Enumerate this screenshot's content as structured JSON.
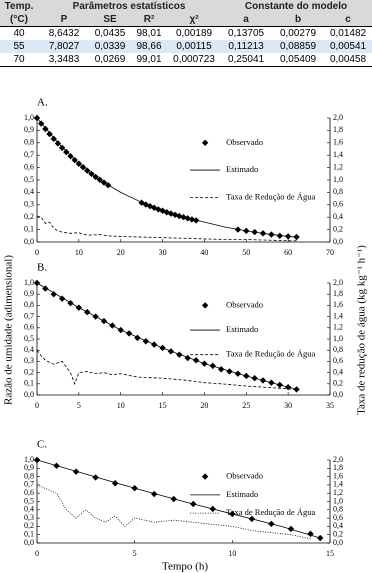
{
  "table": {
    "group_headers": [
      "Temp.",
      "Parâmetros estatísticos",
      "Constante do modelo"
    ],
    "headers": [
      "(°C)",
      "P",
      "SE",
      "R²",
      "χ²",
      "a",
      "b",
      "c"
    ],
    "rows": [
      [
        "40",
        "8,6432",
        "0,0435",
        "98,01",
        "0,00189",
        "0,13705",
        "0,00279",
        "0,01482"
      ],
      [
        "55",
        "7,8027",
        "0,0339",
        "98,66",
        "0,00115",
        "0,11213",
        "0,08859",
        "0,00541"
      ],
      [
        "70",
        "3,3483",
        "0,0269",
        "99,01",
        "0,000723",
        "0,25041",
        "0,05409",
        "0,00458"
      ]
    ]
  },
  "figure": {
    "y_label": "Razão de umidade (adimensional)",
    "y2_label": "Taxa de redução de água (kg kg⁻¹ h⁻¹)",
    "x_label": "Tempo (h)"
  },
  "chart_data": [
    {
      "type": "line",
      "title": "A.",
      "legend": "right",
      "xlim": [
        0,
        70
      ],
      "xticks": [
        0,
        10,
        20,
        30,
        40,
        50,
        60,
        70
      ],
      "ylim": [
        0,
        1
      ],
      "yticks": [
        {
          "value": 0,
          "label": "0,0"
        },
        {
          "value": 0.1,
          "label": "0,1"
        },
        {
          "value": 0.2,
          "label": "0,2"
        },
        {
          "value": 0.3,
          "label": "0,3"
        },
        {
          "value": 0.4,
          "label": "0,4"
        },
        {
          "value": 0.5,
          "label": "0,5"
        },
        {
          "value": 0.6,
          "label": "0,6"
        },
        {
          "value": 0.7,
          "label": "0,7"
        },
        {
          "value": 0.8,
          "label": "0,8"
        },
        {
          "value": 0.9,
          "label": "0,9"
        },
        {
          "value": 1,
          "label": "1,0"
        }
      ],
      "y2lim": [
        0,
        2
      ],
      "y2ticks": [
        {
          "value": 0,
          "label": "0,0"
        },
        {
          "value": 0.2,
          "label": "0,2"
        },
        {
          "value": 0.4,
          "label": "0,4"
        },
        {
          "value": 0.6,
          "label": "0,6"
        },
        {
          "value": 0.8,
          "label": "0,8"
        },
        {
          "value": 1,
          "label": "1,0"
        },
        {
          "value": 1.2,
          "label": "1,2"
        },
        {
          "value": 1.4,
          "label": "1,4"
        },
        {
          "value": 1.6,
          "label": "1,6"
        },
        {
          "value": 1.8,
          "label": "1,8"
        },
        {
          "value": 2,
          "label": "2,0"
        }
      ],
      "series": [
        {
          "name": "Observado",
          "color": "#000000",
          "marker": "diamond",
          "x": [
            0,
            1,
            2,
            3,
            4,
            5,
            6,
            7,
            8,
            9,
            10,
            11,
            12,
            13,
            14,
            15,
            16,
            17,
            25,
            26,
            27,
            28,
            29,
            30,
            31,
            32,
            33,
            34,
            35,
            36,
            37,
            38,
            48,
            50,
            52,
            54,
            56,
            58,
            60,
            62
          ],
          "values": [
            1.0,
            0.955,
            0.912,
            0.871,
            0.832,
            0.795,
            0.759,
            0.725,
            0.692,
            0.661,
            0.631,
            0.603,
            0.576,
            0.55,
            0.525,
            0.502,
            0.479,
            0.458,
            0.317,
            0.302,
            0.289,
            0.276,
            0.263,
            0.252,
            0.24,
            0.229,
            0.219,
            0.209,
            0.2,
            0.191,
            0.182,
            0.174,
            0.1,
            0.09,
            0.08,
            0.07,
            0.06,
            0.05,
            0.045,
            0.04
          ]
        },
        {
          "name": "Estimado",
          "color": "#000000",
          "dash": "solid",
          "x": [
            0,
            5,
            10,
            15,
            20,
            25,
            30,
            35,
            40,
            45,
            50,
            55,
            60,
            62
          ],
          "values": [
            1.0,
            0.8,
            0.63,
            0.5,
            0.4,
            0.32,
            0.25,
            0.2,
            0.16,
            0.12,
            0.09,
            0.065,
            0.045,
            0.04
          ]
        },
        {
          "name": "Taxa de Redução de Água",
          "color": "#000000",
          "dash": "dashed",
          "axis": "y2",
          "x": [
            0,
            1,
            2,
            3,
            4,
            5,
            6,
            8,
            10,
            12,
            15,
            17,
            20,
            25,
            30,
            35,
            40,
            45,
            50,
            55,
            60,
            62
          ],
          "values": [
            0.42,
            0.4,
            0.3,
            0.32,
            0.22,
            0.18,
            0.16,
            0.14,
            0.15,
            0.11,
            0.12,
            0.1,
            0.09,
            0.08,
            0.07,
            0.06,
            0.05,
            0.04,
            0.04,
            0.03,
            0.02,
            0.02
          ]
        }
      ]
    },
    {
      "type": "line",
      "title": "B.",
      "legend": "right",
      "xlim": [
        0,
        35
      ],
      "xticks": [
        0,
        5,
        10,
        15,
        20,
        25,
        30,
        35
      ],
      "ylim": [
        0,
        1
      ],
      "yticks": [
        {
          "value": 0,
          "label": "0,0"
        },
        {
          "value": 0.1,
          "label": "0,1"
        },
        {
          "value": 0.2,
          "label": "0,2"
        },
        {
          "value": 0.3,
          "label": "0,3"
        },
        {
          "value": 0.4,
          "label": "0,4"
        },
        {
          "value": 0.5,
          "label": "0,5"
        },
        {
          "value": 0.6,
          "label": "0,6"
        },
        {
          "value": 0.7,
          "label": "0,7"
        },
        {
          "value": 0.8,
          "label": "0,8"
        },
        {
          "value": 0.9,
          "label": "0,9"
        },
        {
          "value": 1,
          "label": "1,0"
        }
      ],
      "y2lim": [
        0,
        2
      ],
      "y2ticks": [
        {
          "value": 0,
          "label": "0,0"
        },
        {
          "value": 0.2,
          "label": "0,2"
        },
        {
          "value": 0.4,
          "label": "0,4"
        },
        {
          "value": 0.6,
          "label": "0,6"
        },
        {
          "value": 0.8,
          "label": "0,8"
        },
        {
          "value": 1,
          "label": "1,0"
        },
        {
          "value": 1.2,
          "label": "1,2"
        },
        {
          "value": 1.4,
          "label": "1,4"
        },
        {
          "value": 1.6,
          "label": "1,6"
        },
        {
          "value": 1.8,
          "label": "1,8"
        },
        {
          "value": 2,
          "label": "2,0"
        }
      ],
      "series": [
        {
          "name": "Observado",
          "color": "#000000",
          "marker": "diamond",
          "x": [
            0,
            1,
            2,
            3,
            4,
            5,
            6,
            7,
            8,
            9,
            10,
            11,
            12,
            13,
            14,
            15,
            16,
            17,
            18,
            19,
            20,
            21,
            22,
            23,
            24,
            25,
            26,
            27,
            28,
            29,
            30,
            31
          ],
          "values": [
            1.0,
            0.95,
            0.9,
            0.86,
            0.82,
            0.78,
            0.74,
            0.7,
            0.66,
            0.62,
            0.58,
            0.55,
            0.51,
            0.48,
            0.45,
            0.42,
            0.39,
            0.36,
            0.33,
            0.31,
            0.28,
            0.26,
            0.23,
            0.21,
            0.19,
            0.17,
            0.15,
            0.13,
            0.11,
            0.09,
            0.07,
            0.05
          ]
        },
        {
          "name": "Estimado",
          "color": "#000000",
          "dash": "solid",
          "x": [
            0,
            5,
            10,
            15,
            20,
            25,
            30,
            31
          ],
          "values": [
            1.0,
            0.78,
            0.58,
            0.42,
            0.28,
            0.17,
            0.07,
            0.05
          ]
        },
        {
          "name": "Taxa de Redução de Água",
          "color": "#000000",
          "dash": "dashed",
          "axis": "y2",
          "x": [
            0,
            0.5,
            1,
            2,
            3,
            4,
            4.5,
            5,
            6,
            7,
            8,
            9,
            10,
            12,
            15,
            18,
            20,
            22,
            25,
            28,
            31
          ],
          "values": [
            0.8,
            0.7,
            0.62,
            0.55,
            0.6,
            0.4,
            0.2,
            0.4,
            0.42,
            0.38,
            0.4,
            0.36,
            0.38,
            0.32,
            0.3,
            0.26,
            0.22,
            0.2,
            0.16,
            0.13,
            0.1
          ]
        }
      ]
    },
    {
      "type": "line",
      "title": "C.",
      "legend": "right",
      "xlim": [
        0,
        15
      ],
      "xticks": [
        0,
        5,
        10,
        15
      ],
      "ylim": [
        0,
        1
      ],
      "yticks": [
        {
          "value": 0,
          "label": "0,0"
        },
        {
          "value": 0.1,
          "label": "0,1"
        },
        {
          "value": 0.2,
          "label": "0,2"
        },
        {
          "value": 0.3,
          "label": "0,3"
        },
        {
          "value": 0.4,
          "label": "0,4"
        },
        {
          "value": 0.5,
          "label": "0,5"
        },
        {
          "value": 0.6,
          "label": "0,6"
        },
        {
          "value": 0.7,
          "label": "0,7"
        },
        {
          "value": 0.8,
          "label": "0,8"
        },
        {
          "value": 0.9,
          "label": "0,9"
        },
        {
          "value": 1,
          "label": "1,0"
        }
      ],
      "y2lim": [
        0,
        2
      ],
      "y2ticks": [
        {
          "value": 0,
          "label": "0,0"
        },
        {
          "value": 0.2,
          "label": "0,2"
        },
        {
          "value": 0.4,
          "label": "0,4"
        },
        {
          "value": 0.6,
          "label": "0,6"
        },
        {
          "value": 0.8,
          "label": "0,8"
        },
        {
          "value": 1,
          "label": "1,0"
        },
        {
          "value": 1.2,
          "label": "1,2"
        },
        {
          "value": 1.4,
          "label": "1,4"
        },
        {
          "value": 1.6,
          "label": "1,6"
        },
        {
          "value": 1.8,
          "label": "1,8"
        },
        {
          "value": 2,
          "label": "2,0"
        }
      ],
      "series": [
        {
          "name": "Observado",
          "color": "#000000",
          "marker": "diamond",
          "x": [
            0,
            1,
            2,
            3,
            4,
            5,
            6,
            7,
            8,
            9,
            10,
            11,
            12,
            13,
            14,
            14.5
          ],
          "values": [
            1.0,
            0.93,
            0.86,
            0.79,
            0.72,
            0.66,
            0.59,
            0.53,
            0.47,
            0.41,
            0.35,
            0.29,
            0.23,
            0.17,
            0.11,
            0.06
          ]
        },
        {
          "name": "Estimado",
          "color": "#000000",
          "dash": "solid",
          "x": [
            0,
            2.5,
            5,
            7.5,
            10,
            12.5,
            14.5
          ],
          "values": [
            1.0,
            0.83,
            0.66,
            0.5,
            0.35,
            0.2,
            0.06
          ]
        },
        {
          "name": "Taxa de Redução de Água",
          "color": "#000000",
          "dash": "dotted",
          "axis": "y2",
          "x": [
            0,
            0.5,
            1,
            1.5,
            2,
            2.5,
            3,
            3.5,
            4,
            4.5,
            5,
            6,
            7,
            8,
            9,
            10,
            11,
            12,
            13,
            14
          ],
          "values": [
            1.4,
            1.3,
            1.2,
            0.8,
            0.6,
            0.8,
            0.6,
            0.5,
            0.65,
            0.4,
            0.6,
            0.5,
            0.55,
            0.5,
            0.45,
            0.4,
            0.3,
            0.25,
            0.2,
            0.1
          ]
        }
      ]
    }
  ]
}
